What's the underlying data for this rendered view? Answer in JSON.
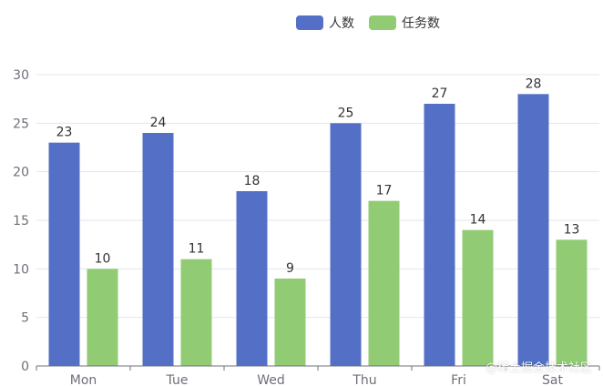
{
  "chart_data": {
    "type": "bar",
    "categories": [
      "Mon",
      "Tue",
      "Wed",
      "Thu",
      "Fri",
      "Sat"
    ],
    "series": [
      {
        "name": "人数",
        "values": [
          23,
          24,
          18,
          25,
          27,
          28
        ],
        "color": "#5470c6"
      },
      {
        "name": "任务数",
        "values": [
          10,
          11,
          9,
          17,
          14,
          13
        ],
        "color": "#91cc75"
      }
    ],
    "ylim": [
      0,
      30
    ],
    "yticks": [
      0,
      5,
      10,
      15,
      20,
      25,
      30
    ],
    "grid": true,
    "legend_position": "top-center",
    "data_labels": true
  },
  "watermark": "@稀土掘金技术社区",
  "colors": {
    "axis_line": "#6e7079",
    "grid_line": "#e0e6f1",
    "label_text": "#333333",
    "tick_text": "#6e7079"
  }
}
